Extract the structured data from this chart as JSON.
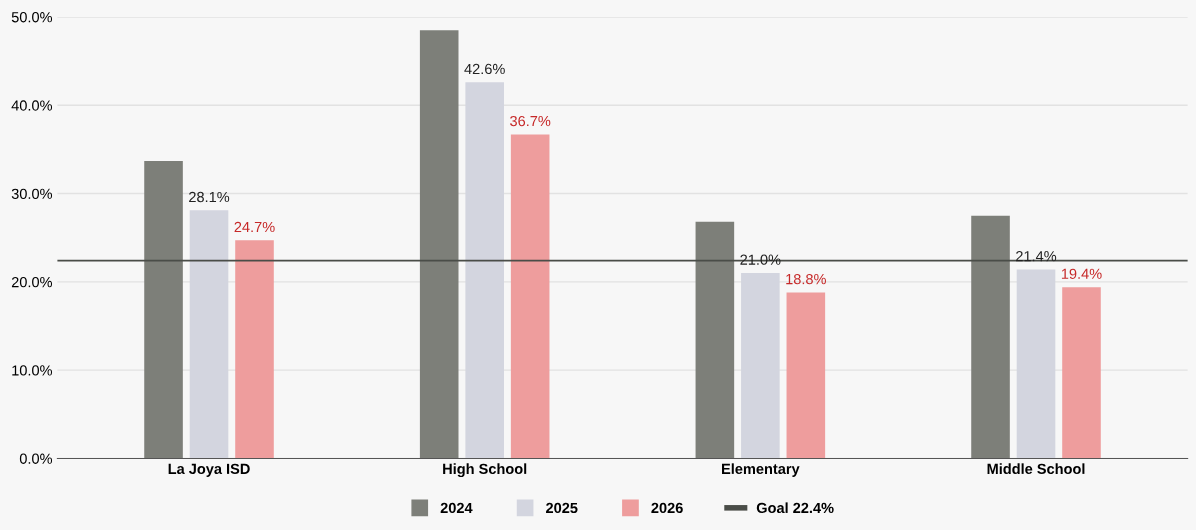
{
  "chart_data": {
    "type": "bar",
    "categories": [
      "La Joya ISD",
      "High School",
      "Elementary",
      "Middle School"
    ],
    "series": [
      {
        "name": "2024",
        "color": "#7d7f79",
        "values": [
          33.7,
          48.5,
          26.8,
          27.5
        ]
      },
      {
        "name": "2025",
        "color": "#d3d5df",
        "values": [
          28.1,
          42.6,
          21.0,
          21.4
        ],
        "value_labels": [
          "28.1%",
          "42.6%",
          "21.0%",
          "21.4%"
        ]
      },
      {
        "name": "2026",
        "color": "#ee9d9d",
        "values": [
          24.7,
          36.7,
          18.8,
          19.4
        ],
        "value_labels": [
          "24.7%",
          "36.7%",
          "18.8%",
          "19.4%"
        ]
      }
    ],
    "ylim": [
      0,
      50
    ],
    "yticks": [
      {
        "value": 0,
        "label": "0.0%"
      },
      {
        "value": 10,
        "label": "10.0%"
      },
      {
        "value": 20,
        "label": "20.0%"
      },
      {
        "value": 30,
        "label": "30.0%"
      },
      {
        "value": 40,
        "label": "40.0%"
      },
      {
        "value": 50,
        "label": "50.0%"
      }
    ],
    "ref_lines": [
      {
        "axis": "y",
        "value": 22.4,
        "label": "Goal 22.4%",
        "color": "#4a4d48"
      }
    ],
    "grid": "y",
    "legend": "bottom"
  }
}
